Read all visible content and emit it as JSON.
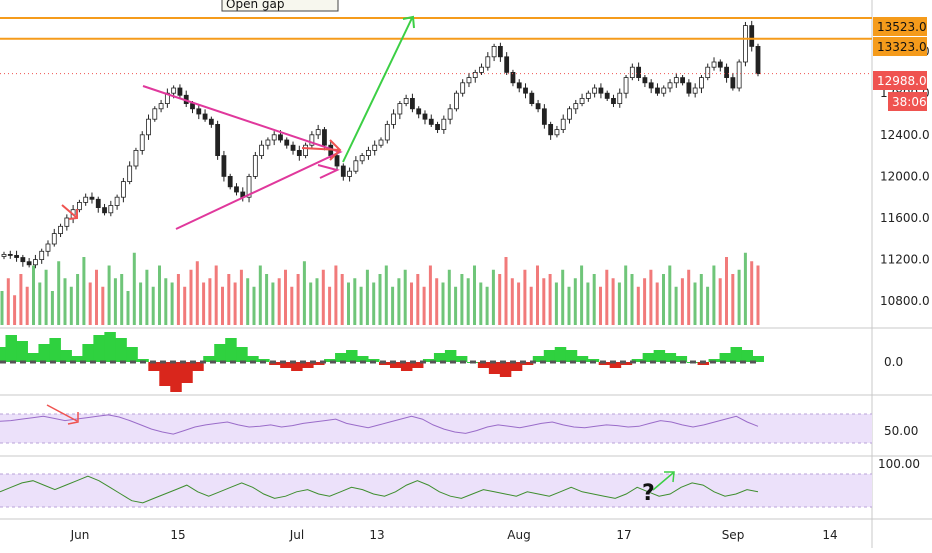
{
  "chart_data": {
    "type": "candlestick",
    "overlay_label": "Open gap",
    "x_tick_labels": [
      "Jun",
      "15",
      "Jul",
      "13",
      "Aug",
      "17",
      "Sep",
      "14"
    ],
    "y_tick_labels": [
      "13200.0",
      "12800.0",
      "12400.0",
      "12000.0",
      "11600.0",
      "11200.0",
      "10800.0"
    ],
    "ylim": [
      10600,
      13600
    ],
    "price_levels": [
      {
        "label": "13523.0",
        "value": 13523,
        "color": "#f59b1b"
      },
      {
        "label": "13323.0",
        "value": 13323,
        "color": "#f59b1b"
      }
    ],
    "last_price": {
      "label": "12988.0",
      "value": 12988,
      "color": "#ef5350"
    },
    "countdown": "38:06",
    "price_series_close": [
      11250,
      11240,
      11220,
      11180,
      11150,
      11200,
      11280,
      11350,
      11450,
      11520,
      11600,
      11680,
      11750,
      11800,
      11780,
      11700,
      11650,
      11720,
      11800,
      11950,
      12100,
      12250,
      12400,
      12550,
      12650,
      12700,
      12800,
      12850,
      12780,
      12700,
      12650,
      12600,
      12550,
      12500,
      12200,
      12000,
      11900,
      11850,
      11800,
      12000,
      12200,
      12300,
      12350,
      12400,
      12350,
      12300,
      12250,
      12200,
      12300,
      12400,
      12450,
      12300,
      12200,
      12100,
      12000,
      12050,
      12150,
      12200,
      12250,
      12300,
      12350,
      12500,
      12600,
      12700,
      12750,
      12650,
      12600,
      12550,
      12500,
      12450,
      12550,
      12650,
      12800,
      12900,
      12950,
      13000,
      13050,
      13150,
      13250,
      13150,
      13000,
      12900,
      12850,
      12800,
      12700,
      12650,
      12500,
      12400,
      12450,
      12550,
      12650,
      12700,
      12750,
      12800,
      12850,
      12800,
      12750,
      12700,
      12800,
      12950,
      13050,
      12950,
      12900,
      12850,
      12800,
      12850,
      12900,
      12950,
      12900,
      12800,
      12850,
      12950,
      13050,
      13100,
      13050,
      12950,
      12850,
      13100,
      13450,
      13250,
      12988
    ],
    "volume_series": [
      40,
      55,
      35,
      60,
      45,
      70,
      50,
      65,
      40,
      75,
      55,
      45,
      60,
      80,
      50,
      65,
      45,
      70,
      55,
      60,
      40,
      85,
      50,
      65,
      45,
      70,
      55,
      50,
      60,
      45,
      65,
      75,
      50,
      55,
      70,
      45,
      60,
      50,
      65,
      55,
      45,
      70,
      60,
      50,
      55,
      65,
      45,
      60,
      75,
      50,
      55,
      65,
      45,
      70,
      60,
      50,
      55,
      45,
      65,
      50,
      60,
      70,
      45,
      55,
      65,
      50,
      60,
      45,
      70,
      55,
      50,
      65,
      45,
      60,
      55,
      70,
      50,
      45,
      65,
      60,
      80,
      55,
      50,
      65,
      45,
      70,
      55,
      60,
      50,
      65,
      45,
      55,
      70,
      50,
      60,
      45,
      65,
      55,
      50,
      70,
      60,
      45,
      55,
      65,
      50,
      60,
      70,
      45,
      55,
      65,
      50,
      60,
      45,
      70,
      55,
      80,
      60,
      65,
      85,
      75,
      70
    ],
    "macd_histogram": [
      0.5,
      0.9,
      0.7,
      0.3,
      0.6,
      0.8,
      0.4,
      0.2,
      0.6,
      0.9,
      1.0,
      0.8,
      0.5,
      0.1,
      -0.3,
      -0.8,
      -1.0,
      -0.7,
      -0.3,
      0.2,
      0.6,
      0.8,
      0.5,
      0.2,
      0.1,
      -0.1,
      -0.2,
      -0.3,
      -0.2,
      -0.1,
      0.1,
      0.3,
      0.4,
      0.2,
      0.1,
      -0.1,
      -0.2,
      -0.3,
      -0.2,
      0.1,
      0.3,
      0.4,
      0.2,
      0.0,
      -0.2,
      -0.4,
      -0.5,
      -0.3,
      -0.1,
      0.2,
      0.4,
      0.5,
      0.4,
      0.2,
      0.1,
      -0.1,
      -0.2,
      -0.1,
      0.1,
      0.3,
      0.4,
      0.3,
      0.2,
      0.0,
      -0.1,
      0.1,
      0.3,
      0.5,
      0.4,
      0.2
    ],
    "rsi": [
      63,
      64,
      66,
      68,
      70,
      67,
      64,
      66,
      68,
      70,
      72,
      69,
      64,
      58,
      52,
      48,
      45,
      50,
      55,
      58,
      60,
      62,
      58,
      55,
      56,
      58,
      55,
      57,
      60,
      62,
      64,
      66,
      60,
      57,
      54,
      58,
      62,
      66,
      70,
      66,
      58,
      52,
      48,
      46,
      50,
      55,
      58,
      56,
      54,
      57,
      60,
      62,
      58,
      55,
      54,
      56,
      58,
      57,
      55,
      56,
      60,
      64,
      62,
      58,
      55,
      58,
      62,
      66,
      70,
      62,
      56
    ],
    "rsi_ticks": [
      "50.00"
    ],
    "macd_ticks": [
      "0.0"
    ],
    "osc_ticks": [
      "100.00"
    ],
    "oscillator": [
      60,
      64,
      68,
      70,
      66,
      62,
      66,
      70,
      74,
      70,
      64,
      58,
      52,
      50,
      54,
      58,
      62,
      66,
      60,
      56,
      60,
      64,
      68,
      64,
      58,
      54,
      56,
      60,
      62,
      58,
      56,
      60,
      64,
      62,
      58,
      56,
      60,
      66,
      70,
      66,
      60,
      56,
      54,
      58,
      62,
      60,
      58,
      56,
      60,
      58,
      56,
      60,
      64,
      60,
      58,
      56,
      54,
      58,
      64,
      60,
      56,
      58,
      64,
      68,
      66,
      60,
      56,
      58,
      62,
      60
    ]
  }
}
